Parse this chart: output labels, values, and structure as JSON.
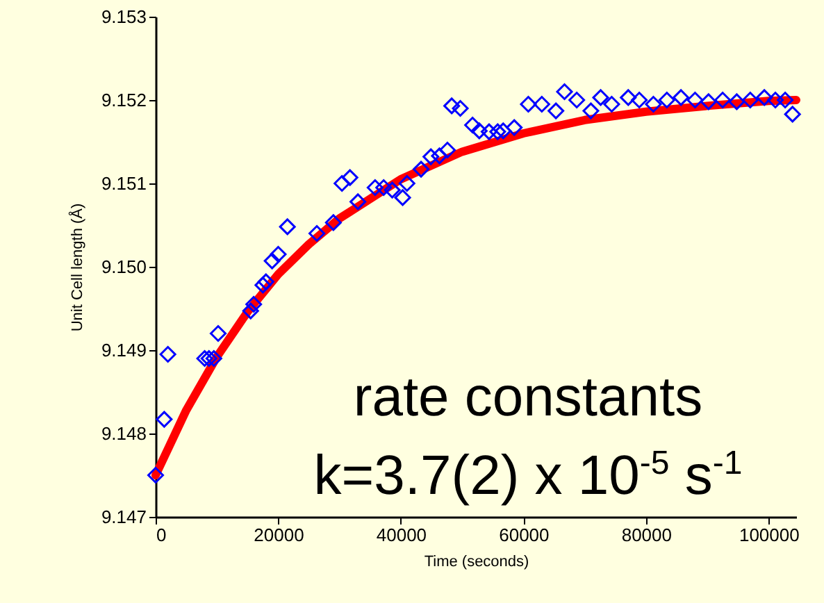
{
  "chart_data": {
    "type": "scatter",
    "xlabel": "Time (seconds)",
    "ylabel": "Unit Cell length (Å)",
    "xlim": [
      0,
      104500
    ],
    "ylim": [
      9.147,
      9.153
    ],
    "xticks": [
      0,
      20000,
      40000,
      60000,
      80000,
      100000
    ],
    "yticks": [
      {
        "value": 9.147,
        "label": "9.147"
      },
      {
        "value": 9.148,
        "label": "9.148"
      },
      {
        "value": 9.149,
        "label": "9.149"
      },
      {
        "value": 9.15,
        "label": "9.150"
      },
      {
        "value": 9.151,
        "label": "9.151"
      },
      {
        "value": 9.152,
        "label": "9.152"
      },
      {
        "value": 9.153,
        "label": "9.153"
      }
    ],
    "grid": false,
    "series": [
      {
        "type": "scatter",
        "marker": "diamond",
        "color": "#0000ff",
        "x": [
          0,
          1400,
          2000,
          8000,
          8700,
          9500,
          10200,
          15500,
          16000,
          17500,
          18000,
          19000,
          20000,
          21500,
          26300,
          29000,
          30400,
          31700,
          33000,
          35800,
          37200,
          38600,
          40300,
          41000,
          43300,
          44900,
          46300,
          47600,
          48300,
          49700,
          51700,
          52800,
          54400,
          55800,
          56700,
          58500,
          60800,
          63000,
          65300,
          66700,
          68700,
          71000,
          72600,
          74400,
          77100,
          78900,
          81200,
          83400,
          85700,
          88000,
          90200,
          92500,
          94800,
          97000,
          99300,
          101100,
          102700,
          103900
        ],
        "values": [
          9.1475,
          9.14817,
          9.14895,
          9.1489,
          9.1489,
          9.1489,
          9.1492,
          9.14947,
          9.14955,
          9.14978,
          9.14982,
          9.15007,
          9.15015,
          9.15048,
          9.1504,
          9.15053,
          9.151,
          9.15107,
          9.15078,
          9.15095,
          9.15095,
          9.15092,
          9.15083,
          9.151,
          9.15117,
          9.15132,
          9.15133,
          9.1514,
          9.15193,
          9.1519,
          9.1517,
          9.15163,
          9.15162,
          9.15162,
          9.15163,
          9.15167,
          9.15195,
          9.15195,
          9.15187,
          9.1521,
          9.152,
          9.15187,
          9.15203,
          9.15195,
          9.15203,
          9.152,
          9.15195,
          9.152,
          9.15203,
          9.152,
          9.15198,
          9.152,
          9.15198,
          9.152,
          9.15203,
          9.152,
          9.152,
          9.15183
        ]
      },
      {
        "type": "line",
        "color": "#ff0000",
        "x": [
          0,
          5000,
          10000,
          15000,
          20000,
          25000,
          30000,
          40000,
          50000,
          60000,
          70000,
          80000,
          90000,
          100000,
          104500
        ],
        "values": [
          9.1475,
          9.14828,
          9.14892,
          9.14946,
          9.14991,
          9.15027,
          9.15058,
          9.15105,
          9.15138,
          9.1516,
          9.15176,
          9.15186,
          9.15193,
          9.15199,
          9.152
        ]
      }
    ],
    "annotations": [
      "rate constants",
      "k=3.7(2) x 10$^{-5}$ s$^{-1}$"
    ]
  }
}
